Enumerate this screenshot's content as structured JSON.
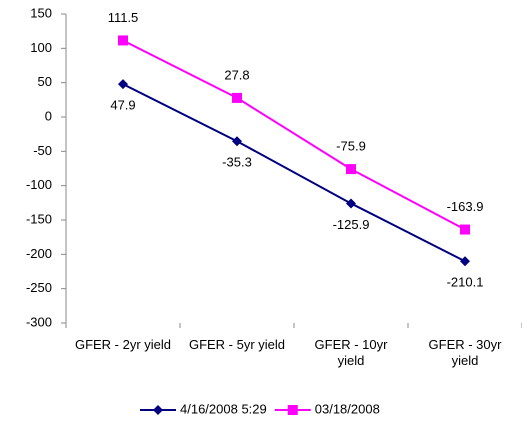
{
  "chart_data": {
    "type": "line",
    "categories": [
      "GFER - 2yr yield",
      "GFER - 5yr yield",
      "GFER - 10yr yield",
      "GFER - 30yr yield"
    ],
    "series": [
      {
        "name": "4/16/2008 5:29",
        "color": "#000080",
        "marker": "diamond",
        "values": [
          47.9,
          -35.3,
          -125.9,
          -210.1
        ]
      },
      {
        "name": "03/18/2008",
        "color": "#ff00ff",
        "marker": "square",
        "values": [
          111.5,
          27.8,
          -75.9,
          -163.9
        ]
      }
    ],
    "ylim": [
      -300,
      150
    ],
    "yticks": [
      -300,
      -250,
      -200,
      -150,
      -100,
      -50,
      0,
      50,
      100,
      150
    ],
    "grid": false,
    "legend": "bottom"
  }
}
